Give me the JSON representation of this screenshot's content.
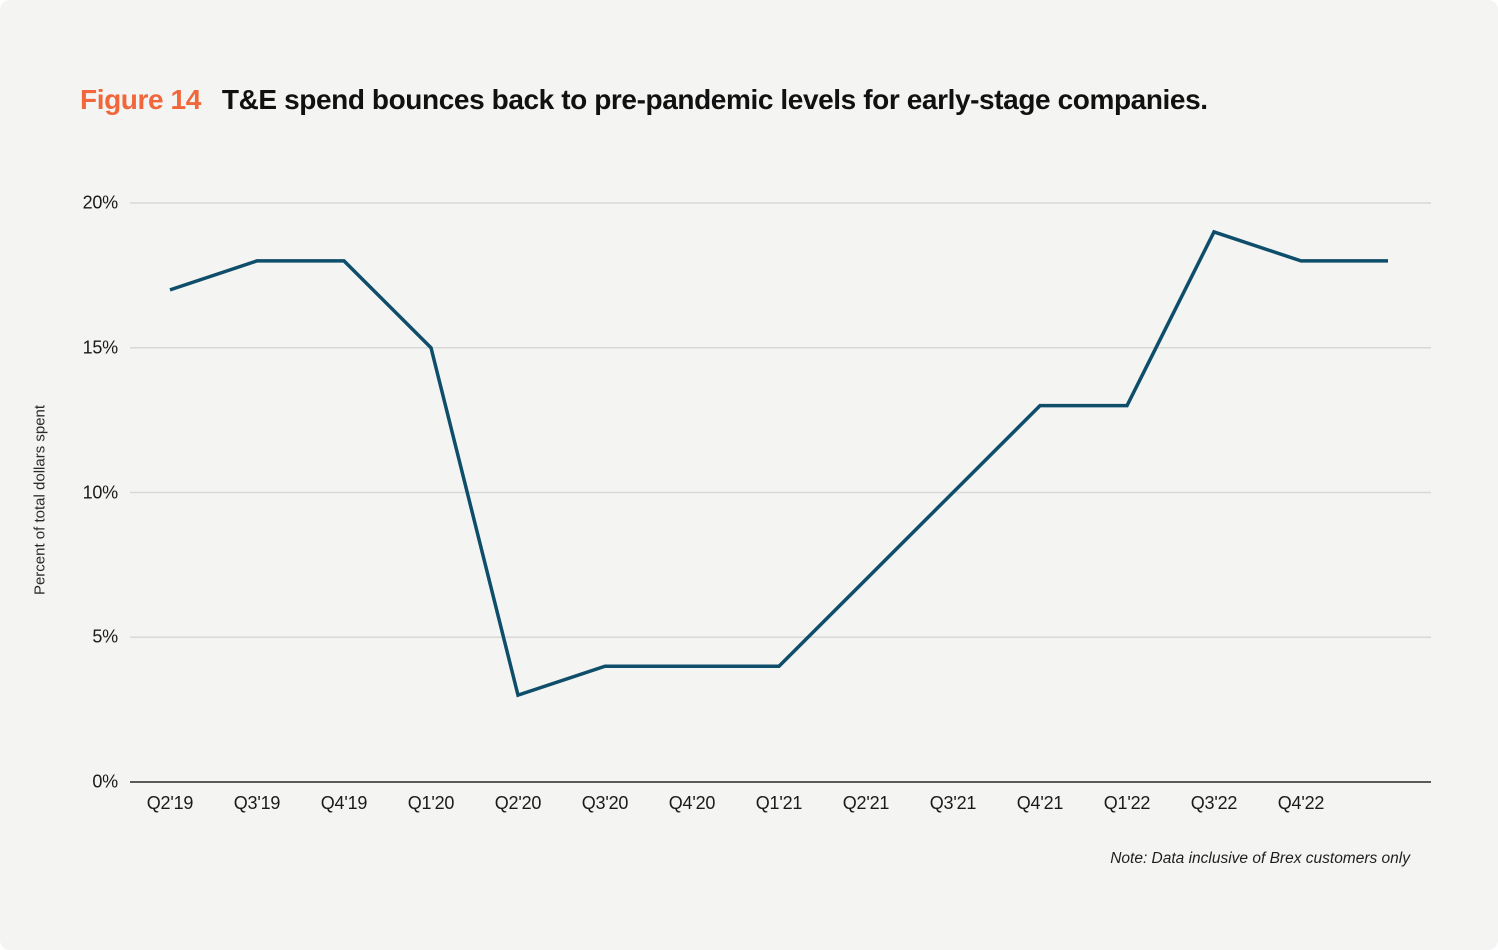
{
  "header": {
    "figure_label": "Figure 14",
    "title": "T&E spend bounces back to pre-pandemic levels for early-stage companies."
  },
  "note": "Note: Data inclusive of Brex customers only",
  "colors": {
    "background": "#f4f4f2",
    "accent_orange": "#f1673c",
    "title_text": "#111111",
    "line": "#0e4e6b",
    "gridline": "#d8d8d6",
    "axis_line": "#5a5a5a",
    "tick_text": "#1a1a1a",
    "note_text": "#1f1f1f"
  },
  "chart_data": {
    "type": "line",
    "title": "T&E spend bounces back to pre-pandemic levels for early-stage companies.",
    "figure_label": "Figure 14",
    "categories": [
      "Q2'19",
      "Q3'19",
      "Q4'19",
      "Q1'20",
      "Q2'20",
      "Q3'20",
      "Q4'20",
      "Q1'21",
      "Q2'21",
      "Q3'21",
      "Q4'21",
      "Q1'22",
      "Q3'22",
      "Q4'22",
      ""
    ],
    "values": [
      17,
      18,
      18,
      15,
      3,
      4,
      4,
      4,
      7,
      10,
      13,
      13,
      19,
      18,
      18
    ],
    "xlabel": "",
    "ylabel": "Percent of total dollars spent",
    "ylim": [
      0,
      20
    ],
    "yticks": [
      0,
      5,
      10,
      15,
      20
    ],
    "ytick_labels": [
      "0%",
      "5%",
      "10%",
      "15%",
      "20%"
    ],
    "grid": true,
    "legend_position": "none",
    "line_color": "#0e4e6b",
    "note": "Note: Data inclusive of Brex customers only"
  }
}
